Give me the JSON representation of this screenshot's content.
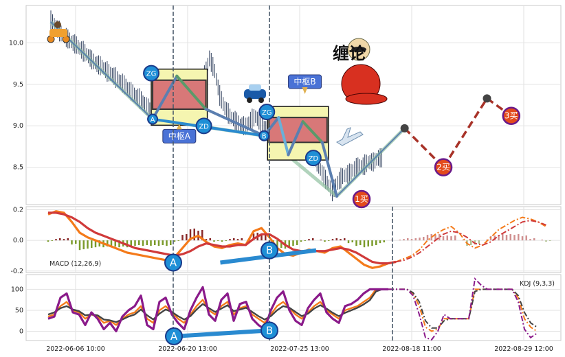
{
  "chart_data": [
    {
      "panel": "price",
      "type": "line",
      "ylim": [
        8.05,
        10.45
      ],
      "yticks": [
        10.0,
        9.5,
        9.0,
        8.5
      ],
      "ytick_labels": [
        "10.0",
        "9.5",
        "9.0",
        "8.5"
      ],
      "grid": true,
      "price_series": [
        10.25,
        10.18,
        10.1,
        10.05,
        10.0,
        9.96,
        9.9,
        9.85,
        9.78,
        9.73,
        9.7,
        9.64,
        9.6,
        9.55,
        9.5,
        9.44,
        9.38,
        9.33,
        9.28,
        9.2,
        9.12,
        9.1,
        9.2,
        9.3,
        9.35,
        9.3,
        9.45,
        9.35,
        9.2,
        9.28,
        9.6,
        9.8,
        9.65,
        9.35,
        9.2,
        9.1,
        9.05,
        9.0,
        8.98,
        9.05,
        9.1,
        9.02,
        8.95,
        9.05,
        8.98,
        9.05,
        8.95,
        9.0,
        8.95,
        8.9,
        8.8,
        8.7,
        8.55,
        8.42,
        8.3,
        8.2,
        8.3,
        8.38,
        8.4,
        8.45,
        8.5,
        8.5,
        8.55,
        8.55,
        8.6
      ],
      "bi_strokes": [
        {
          "x": 0,
          "y": 10.25
        },
        {
          "x": 21,
          "y": 9.08
        },
        {
          "x": 26,
          "y": 9.6
        },
        {
          "x": 32,
          "y": 9.2
        },
        {
          "x": 44,
          "y": 8.88
        },
        {
          "x": 47,
          "y": 9.1
        },
        {
          "x": 49,
          "y": 8.65
        },
        {
          "x": 52,
          "y": 9.05
        },
        {
          "x": 56,
          "y": 8.8
        },
        {
          "x": 59,
          "y": 8.15
        },
        {
          "x": 73,
          "y": 8.97
        }
      ],
      "forecast": [
        {
          "x": 73,
          "y": 8.97
        },
        {
          "x": 81,
          "y": 8.5
        },
        {
          "x": 90,
          "y": 9.33
        },
        {
          "x": 95,
          "y": 9.12
        }
      ],
      "zhongshu": [
        {
          "label": "中枢A",
          "x0": 21,
          "x1": 32,
          "ytop": 9.55,
          "ybot": 9.2,
          "zg": 9.65,
          "zd": 9.04
        },
        {
          "label": "中枢B",
          "x0": 45,
          "x1": 57,
          "ytop": 9.1,
          "ybot": 8.8,
          "zg": 9.2,
          "zd": 8.62
        }
      ],
      "points": [
        {
          "label": "A",
          "x": 21,
          "y": 9.08
        },
        {
          "label": "B",
          "x": 44,
          "y": 8.88
        }
      ],
      "node_labels": [
        "ZG",
        "ZD",
        "ZG",
        "ZD"
      ],
      "buy_signals": [
        {
          "label": "1买",
          "x": 59,
          "y": 8.05
        },
        {
          "label": "2买",
          "x": 81,
          "y": 8.5
        },
        {
          "label": "3买",
          "x": 95,
          "y": 9.12
        }
      ]
    },
    {
      "panel": "macd",
      "type": "line",
      "title": "MACD (12,26,9)",
      "ylim": [
        -0.21,
        0.22
      ],
      "yticks": [
        0.2,
        0.0,
        -0.2
      ],
      "ytick_labels": [
        "0.2",
        "0.0",
        "-0.2"
      ],
      "series": [
        {
          "values": [
            0.17,
            0.19,
            0.18,
            0.12,
            0.05,
            0.02,
            0.0,
            -0.02,
            -0.04,
            -0.06,
            -0.08,
            -0.09,
            -0.1,
            -0.11,
            -0.12,
            -0.13,
            -0.11,
            -0.05,
            0.01,
            0.03,
            -0.01,
            -0.04,
            -0.05,
            -0.03,
            -0.02,
            -0.03,
            0.06,
            0.08,
            0.02,
            -0.05,
            -0.09,
            -0.1,
            -0.08,
            -0.06,
            -0.07,
            -0.08,
            -0.05,
            -0.04,
            -0.08,
            -0.12,
            -0.16,
            -0.18,
            -0.17,
            -0.15,
            -0.14,
            -0.12,
            -0.1,
            -0.06,
            0.0,
            0.04,
            0.07,
            0.09,
            0.05,
            -0.02,
            -0.05,
            -0.03,
            0.02,
            0.07,
            0.1,
            0.13,
            0.15,
            0.14,
            0.12,
            0.09
          ]
        },
        {
          "values": [
            0.18,
            0.18,
            0.17,
            0.15,
            0.12,
            0.08,
            0.05,
            0.03,
            0.01,
            -0.01,
            -0.03,
            -0.05,
            -0.06,
            -0.07,
            -0.08,
            -0.09,
            -0.1,
            -0.09,
            -0.07,
            -0.04,
            -0.02,
            -0.03,
            -0.04,
            -0.04,
            -0.03,
            -0.03,
            0.01,
            0.04,
            0.04,
            0.01,
            -0.03,
            -0.06,
            -0.07,
            -0.07,
            -0.07,
            -0.07,
            -0.06,
            -0.05,
            -0.06,
            -0.08,
            -0.11,
            -0.14,
            -0.15,
            -0.15,
            -0.14,
            -0.13,
            -0.11,
            -0.08,
            -0.04,
            0.0,
            0.04,
            0.06,
            0.05,
            0.02,
            -0.02,
            -0.03,
            -0.01,
            0.03,
            0.06,
            0.09,
            0.12,
            0.13,
            0.12,
            0.1
          ]
        }
      ],
      "points": [
        {
          "label": "A",
          "x": 17,
          "y": -0.145
        },
        {
          "label": "B",
          "x": 30,
          "y": -0.065
        }
      ]
    },
    {
      "panel": "kdj",
      "type": "line",
      "title": "KDJ (9,3,3)",
      "ylim": [
        -22,
        135
      ],
      "yticks": [
        100,
        50,
        0
      ],
      "ytick_labels": [
        "100",
        "50",
        "0"
      ],
      "series": [
        {
          "values": [
            35,
            40,
            60,
            70,
            50,
            45,
            30,
            40,
            35,
            20,
            25,
            15,
            30,
            40,
            45,
            60,
            30,
            20,
            50,
            60,
            45,
            30,
            20,
            40,
            60,
            75,
            50,
            40,
            60,
            70,
            40,
            55,
            60,
            40,
            30,
            20,
            40,
            60,
            70,
            55,
            40,
            30,
            45,
            60,
            70,
            50,
            40,
            30,
            50,
            55,
            60,
            70,
            80,
            100,
            100,
            100,
            100,
            100,
            100,
            90,
            60,
            10,
            0,
            5,
            30,
            30,
            30,
            30,
            30,
            100,
            100,
            100,
            100,
            100,
            100,
            100,
            80,
            30,
            10,
            0
          ]
        },
        {
          "values": [
            40,
            45,
            55,
            60,
            52,
            48,
            38,
            40,
            38,
            28,
            26,
            22,
            28,
            35,
            40,
            52,
            38,
            28,
            42,
            52,
            46,
            36,
            28,
            36,
            52,
            65,
            55,
            46,
            54,
            62,
            48,
            52,
            56,
            46,
            36,
            28,
            36,
            50,
            60,
            56,
            46,
            36,
            42,
            54,
            62,
            54,
            44,
            36,
            44,
            50,
            56,
            64,
            74,
            95,
            100,
            100,
            100,
            100,
            100,
            92,
            70,
            25,
            8,
            8,
            25,
            30,
            30,
            30,
            30,
            95,
            100,
            100,
            100,
            100,
            100,
            100,
            85,
            45,
            20,
            10
          ]
        },
        {
          "values": [
            30,
            35,
            80,
            90,
            45,
            40,
            15,
            45,
            30,
            5,
            20,
            0,
            35,
            50,
            60,
            85,
            15,
            5,
            70,
            80,
            40,
            20,
            5,
            50,
            80,
            105,
            40,
            25,
            75,
            90,
            25,
            65,
            70,
            30,
            15,
            5,
            50,
            80,
            95,
            50,
            25,
            15,
            55,
            75,
            90,
            45,
            30,
            20,
            60,
            65,
            75,
            90,
            100,
            100,
            100,
            100,
            100,
            100,
            100,
            85,
            40,
            -15,
            -20,
            0,
            40,
            30,
            30,
            30,
            30,
            125,
            110,
            100,
            100,
            100,
            100,
            100,
            70,
            5,
            -15,
            -5
          ]
        }
      ],
      "points": [
        {
          "label": "A",
          "x": 17,
          "y": -12
        },
        {
          "label": "B",
          "x": 30,
          "y": 2
        }
      ]
    }
  ],
  "xaxis": {
    "tick_labels": [
      "2022-06-06 10:00",
      "2022-06-20 13:00",
      "2022-07-25 13:00",
      "2022-08-18 11:00",
      "2022-08-29 12:00"
    ]
  },
  "logo_text": "缠论",
  "colors": {
    "candle": "#2e3e5c",
    "bi": "#5b7fb0",
    "bi_green": "#5a9a6a",
    "trend": "#90c0a0",
    "zs_fill": "#d87878",
    "zs_border": "#333333",
    "forecast": "#a83228",
    "node_blue": "#1e8fd6",
    "label_bg": "#4a72d6",
    "buy_fill": "#e34a1c",
    "buy_stroke": "#6a1a8a",
    "macd_dif": "#f47a1a",
    "macd_dea": "#d03a3a",
    "macd_pos": "#8a2a2a",
    "macd_neg": "#7a9a2a",
    "kdj_k": "#f47a1a",
    "kdj_d": "#444444",
    "kdj_j": "#8a1a8a",
    "ab_line": "#2a8ad0",
    "vline": "#4a5a6a"
  }
}
